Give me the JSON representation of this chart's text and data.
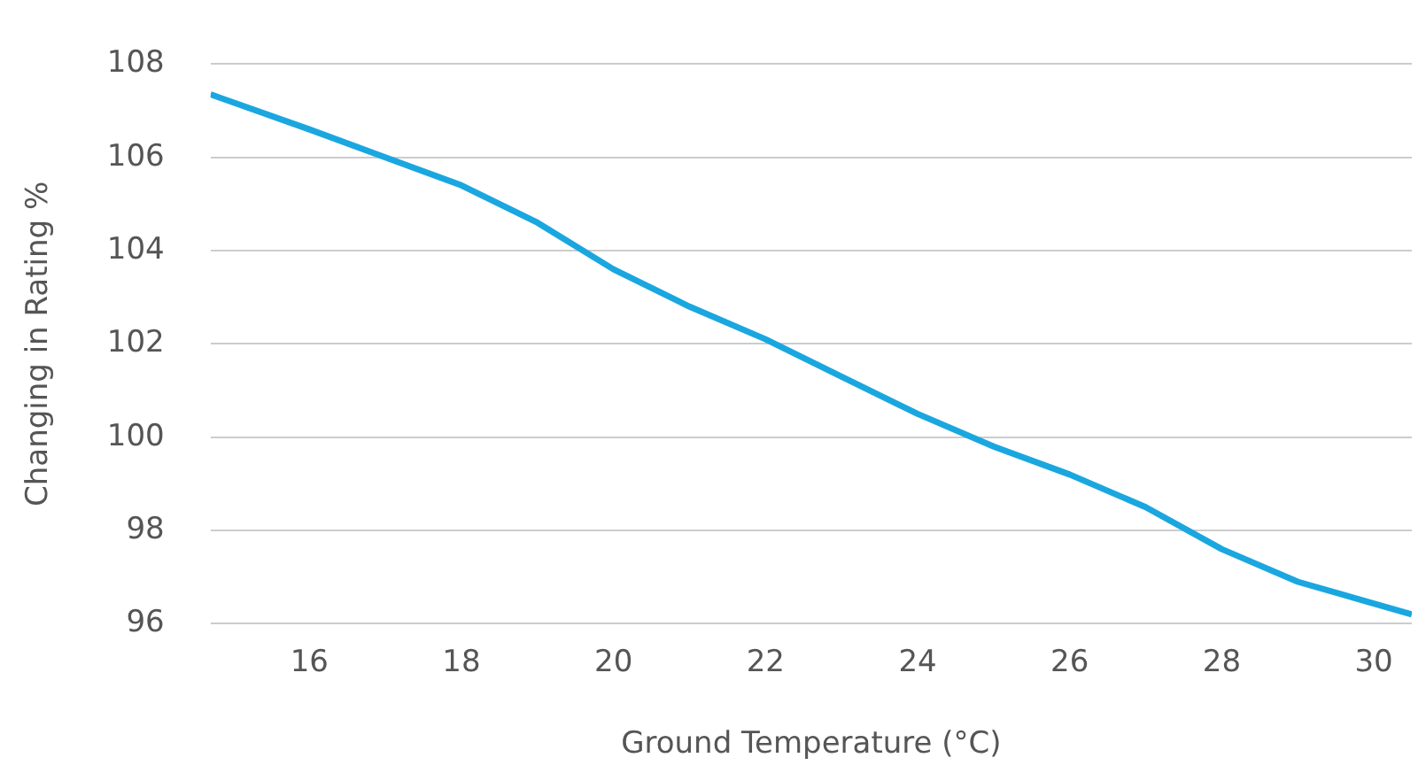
{
  "chart_data": {
    "type": "line",
    "xlabel": "Ground Temperature (°C)",
    "ylabel": "Changing in Rating %",
    "x": [
      14.7,
      16,
      17,
      18,
      19,
      20,
      21,
      22,
      23,
      24,
      25,
      26,
      27,
      28,
      29,
      30.5
    ],
    "series": [
      {
        "color": "#1aa7e0",
        "values": [
          107.35,
          106.6,
          106.0,
          105.4,
          104.6,
          103.6,
          102.8,
          102.1,
          101.3,
          100.5,
          99.8,
          99.2,
          98.5,
          97.6,
          96.9,
          96.2
        ]
      }
    ],
    "xlim": [
      14.7,
      30.5
    ],
    "xticks": [
      16,
      18,
      20,
      22,
      24,
      26,
      28,
      30
    ],
    "ylim": [
      96,
      108
    ],
    "yticks": [
      96,
      98,
      100,
      102,
      104,
      106,
      108
    ],
    "grid": "y",
    "legend": false,
    "marker": "none",
    "line_style": "solid"
  }
}
